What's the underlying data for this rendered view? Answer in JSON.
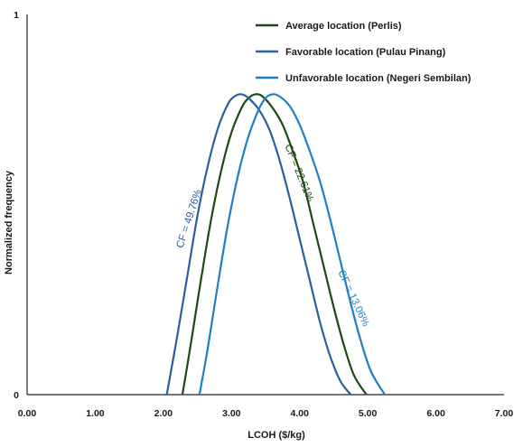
{
  "chart_data": {
    "type": "line",
    "xlabel": "LCOH ($/kg)",
    "ylabel": "Normalized frequency",
    "xlim": [
      0,
      7
    ],
    "ylim": [
      0,
      1
    ],
    "x_ticks": [
      "0.00",
      "1.00",
      "2.00",
      "3.00",
      "4.00",
      "5.00",
      "6.00",
      "7.00"
    ],
    "y_ticks": [
      "0",
      "1"
    ],
    "grid": false,
    "legend_position": "top-right",
    "series": [
      {
        "name": "Average location (Perlis)",
        "color": "#1d4a12",
        "x": [
          2.28,
          2.4,
          2.55,
          2.7,
          2.85,
          3.0,
          3.15,
          3.25,
          3.35,
          3.45,
          3.6,
          3.75,
          3.9,
          4.05,
          4.2,
          4.35,
          4.5,
          4.65,
          4.8,
          4.98
        ],
        "y": [
          0.0,
          0.13,
          0.3,
          0.46,
          0.59,
          0.69,
          0.755,
          0.78,
          0.79,
          0.785,
          0.755,
          0.71,
          0.64,
          0.56,
          0.45,
          0.34,
          0.23,
          0.13,
          0.05,
          0.0
        ]
      },
      {
        "name": "Favorable location (Pulau Pinang)",
        "color": "#2c5fa0",
        "x": [
          2.05,
          2.2,
          2.35,
          2.5,
          2.65,
          2.8,
          2.95,
          3.05,
          3.15,
          3.25,
          3.4,
          3.55,
          3.7,
          3.85,
          4.0,
          4.15,
          4.3,
          4.45,
          4.6,
          4.75
        ],
        "y": [
          0.0,
          0.15,
          0.31,
          0.47,
          0.6,
          0.7,
          0.765,
          0.785,
          0.79,
          0.78,
          0.75,
          0.7,
          0.62,
          0.52,
          0.41,
          0.3,
          0.19,
          0.1,
          0.035,
          0.0
        ]
      },
      {
        "name": "Unfavorable location (Negeri Sembilan)",
        "color": "#1f7fc4",
        "x": [
          2.53,
          2.65,
          2.8,
          2.95,
          3.1,
          3.25,
          3.4,
          3.5,
          3.6,
          3.7,
          3.85,
          4.0,
          4.15,
          4.3,
          4.45,
          4.6,
          4.75,
          4.9,
          5.05,
          5.25
        ],
        "y": [
          0.0,
          0.12,
          0.29,
          0.45,
          0.58,
          0.68,
          0.75,
          0.78,
          0.79,
          0.785,
          0.76,
          0.71,
          0.64,
          0.56,
          0.46,
          0.35,
          0.24,
          0.14,
          0.06,
          0.0
        ]
      }
    ],
    "annotations": [
      {
        "text": "CF = 49.76%",
        "color": "#2c5fa0",
        "x": 2.42,
        "y": 0.46,
        "angle": -72
      },
      {
        "text": "CF = 22.61%",
        "color": "#1d4a12",
        "x": 3.95,
        "y": 0.58,
        "angle": 68
      },
      {
        "text": "CF = 13.06%",
        "color": "#1f7fc4",
        "x": 4.75,
        "y": 0.25,
        "angle": 65
      }
    ]
  }
}
